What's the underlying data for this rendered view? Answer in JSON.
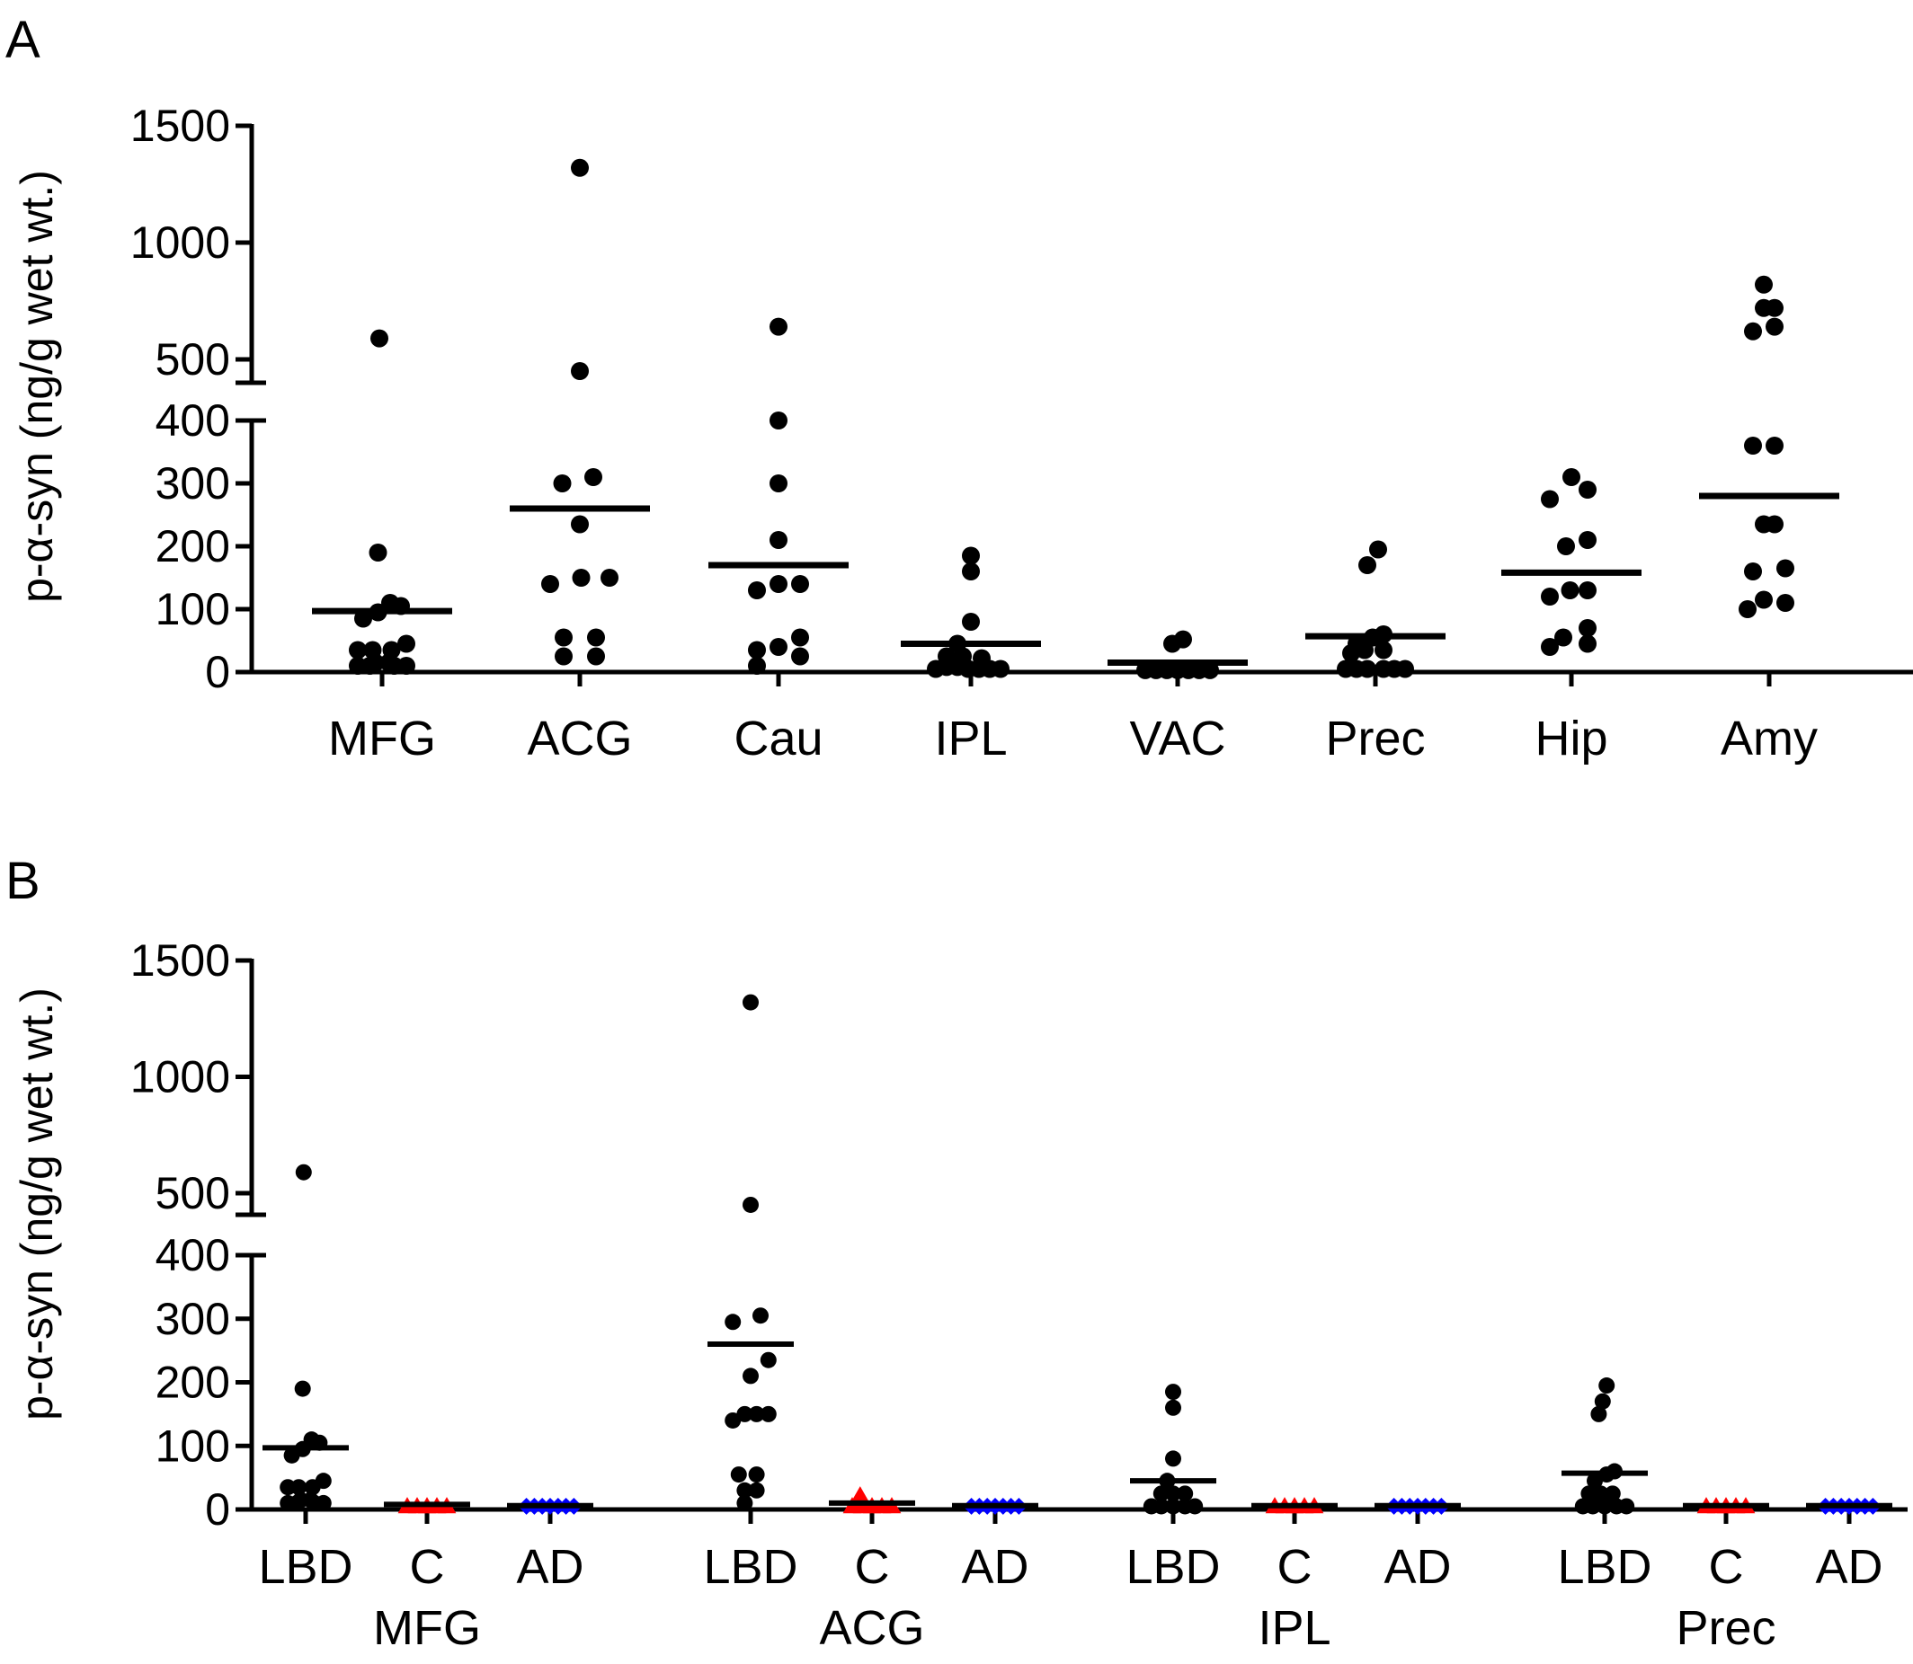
{
  "chart_data": [
    {
      "panel_label": "A",
      "type": "scatter",
      "subtype": "dot plot with mean line, broken y-axis",
      "ylabel": "p-α-syn (ng/g wet wt.)",
      "yticks_lower": [
        0,
        100,
        200,
        300,
        400
      ],
      "yticks_upper": [
        500,
        1000,
        1500
      ],
      "ylim_lower": [
        0,
        400
      ],
      "ylim_upper": [
        500,
        1500
      ],
      "categories": [
        "MFG",
        "ACG",
        "Cau",
        "IPL",
        "VAC",
        "Prec",
        "Hip",
        "Amy"
      ],
      "series": [
        {
          "category": "MFG",
          "color": "#000000",
          "marker": "circle",
          "mean": 97,
          "points": [
            [
              -0.9,
              10
            ],
            [
              -0.45,
              10
            ],
            [
              0.45,
              10
            ],
            [
              0.9,
              10
            ],
            [
              -0.25,
              15
            ],
            [
              0.25,
              15
            ],
            [
              -0.9,
              35
            ],
            [
              -0.35,
              35
            ],
            [
              0.35,
              35
            ],
            [
              0.9,
              45
            ],
            [
              -0.7,
              85
            ],
            [
              -0.15,
              95
            ],
            [
              0.3,
              110
            ],
            [
              0.7,
              105
            ],
            [
              -0.15,
              190
            ],
            [
              -0.1,
              590
            ]
          ]
        },
        {
          "category": "ACG",
          "color": "#000000",
          "marker": "circle",
          "mean": 260,
          "points": [
            [
              -0.6,
              25
            ],
            [
              0.6,
              25
            ],
            [
              -0.6,
              55
            ],
            [
              0.6,
              55
            ],
            [
              -1.1,
              140
            ],
            [
              0.05,
              150
            ],
            [
              1.1,
              150
            ],
            [
              0,
              235
            ],
            [
              -0.65,
              300
            ],
            [
              0.5,
              310
            ],
            [
              0,
              450
            ],
            [
              0,
              1320
            ]
          ]
        },
        {
          "category": "Cau",
          "color": "#000000",
          "marker": "circle",
          "mean": 170,
          "points": [
            [
              -0.8,
              10
            ],
            [
              -0.8,
              35
            ],
            [
              0.8,
              25
            ],
            [
              0,
              40
            ],
            [
              0.8,
              55
            ],
            [
              -0.8,
              130
            ],
            [
              0,
              140
            ],
            [
              0.8,
              140
            ],
            [
              0,
              210
            ],
            [
              0,
              300
            ],
            [
              0,
              400
            ],
            [
              0,
              640
            ]
          ]
        },
        {
          "category": "IPL",
          "color": "#000000",
          "marker": "circle",
          "mean": 45,
          "points": [
            [
              -1.3,
              5
            ],
            [
              -0.9,
              8
            ],
            [
              -0.5,
              8
            ],
            [
              -0.1,
              5
            ],
            [
              0.3,
              5
            ],
            [
              0.7,
              5
            ],
            [
              1.1,
              5
            ],
            [
              -0.9,
              25
            ],
            [
              -0.3,
              25
            ],
            [
              0.4,
              22
            ],
            [
              -0.5,
              45
            ],
            [
              0,
              80
            ],
            [
              0,
              160
            ],
            [
              0,
              185
            ]
          ]
        },
        {
          "category": "VAC",
          "color": "#000000",
          "marker": "circle",
          "mean": 15,
          "points": [
            [
              -1.2,
              3
            ],
            [
              -0.8,
              3
            ],
            [
              -0.4,
              3
            ],
            [
              0,
              3
            ],
            [
              0.4,
              3
            ],
            [
              0.8,
              3
            ],
            [
              1.2,
              3
            ],
            [
              -0.2,
              45
            ],
            [
              0.2,
              52
            ]
          ]
        },
        {
          "category": "Prec",
          "color": "#000000",
          "marker": "circle",
          "mean": 57,
          "points": [
            [
              -1.1,
              5
            ],
            [
              -0.7,
              5
            ],
            [
              -0.3,
              5
            ],
            [
              0.3,
              5
            ],
            [
              0.7,
              5
            ],
            [
              1.1,
              5
            ],
            [
              -0.9,
              30
            ],
            [
              -0.4,
              35
            ],
            [
              0.3,
              35
            ],
            [
              -0.7,
              45
            ],
            [
              -0.1,
              55
            ],
            [
              0.3,
              60
            ],
            [
              -0.3,
              170
            ],
            [
              0.1,
              195
            ]
          ]
        },
        {
          "category": "Hip",
          "color": "#000000",
          "marker": "circle",
          "mean": 158,
          "points": [
            [
              -0.8,
              40
            ],
            [
              0.6,
              45
            ],
            [
              -0.3,
              55
            ],
            [
              0.6,
              70
            ],
            [
              -0.8,
              120
            ],
            [
              -0.05,
              130
            ],
            [
              0.6,
              130
            ],
            [
              -0.2,
              200
            ],
            [
              0.6,
              210
            ],
            [
              -0.8,
              275
            ],
            [
              0.6,
              290
            ],
            [
              0,
              310
            ]
          ]
        },
        {
          "category": "Amy",
          "color": "#000000",
          "marker": "circle",
          "mean": 280,
          "points": [
            [
              -0.8,
              100
            ],
            [
              -0.2,
              115
            ],
            [
              0.6,
              110
            ],
            [
              -0.6,
              160
            ],
            [
              0.6,
              165
            ],
            [
              -0.2,
              235
            ],
            [
              0.2,
              235
            ],
            [
              -0.6,
              360
            ],
            [
              0.2,
              360
            ],
            [
              -0.6,
              620
            ],
            [
              0.2,
              640
            ],
            [
              -0.2,
              720
            ],
            [
              0.2,
              720
            ],
            [
              -0.2,
              820
            ]
          ]
        }
      ]
    },
    {
      "panel_label": "B",
      "type": "scatter",
      "subtype": "grouped dot plot with mean line, broken y-axis",
      "ylabel": "p-α-syn (ng/g wet wt.)",
      "yticks_lower": [
        0,
        100,
        200,
        300,
        400
      ],
      "yticks_upper": [
        500,
        1000,
        1500
      ],
      "ylim_lower": [
        0,
        400
      ],
      "ylim_upper": [
        500,
        1500
      ],
      "groups": [
        "MFG",
        "ACG",
        "IPL",
        "Prec"
      ],
      "subgroups": [
        "LBD",
        "C",
        "AD"
      ],
      "subgroup_styles": {
        "LBD": {
          "color": "#000000",
          "marker": "circle"
        },
        "C": {
          "color": "#ff0000",
          "marker": "triangle"
        },
        "AD": {
          "color": "#0000ff",
          "marker": "diamond"
        }
      },
      "series": [
        {
          "group": "MFG",
          "subgroup": "LBD",
          "mean": 97,
          "points": [
            [
              -0.9,
              10
            ],
            [
              -0.45,
              10
            ],
            [
              0.45,
              10
            ],
            [
              0.9,
              10
            ],
            [
              -0.25,
              15
            ],
            [
              0.25,
              15
            ],
            [
              -0.9,
              35
            ],
            [
              -0.35,
              35
            ],
            [
              0.35,
              35
            ],
            [
              0.9,
              45
            ],
            [
              -0.7,
              85
            ],
            [
              -0.15,
              95
            ],
            [
              0.3,
              110
            ],
            [
              0.7,
              105
            ],
            [
              -0.15,
              190
            ],
            [
              -0.1,
              590
            ]
          ]
        },
        {
          "group": "MFG",
          "subgroup": "C",
          "mean": 8,
          "points": [
            [
              -1.0,
              5
            ],
            [
              -0.5,
              5
            ],
            [
              0,
              5
            ],
            [
              0.5,
              5
            ],
            [
              1.0,
              5
            ]
          ]
        },
        {
          "group": "MFG",
          "subgroup": "AD",
          "mean": 6,
          "points": [
            [
              -1.2,
              5
            ],
            [
              -0.8,
              5
            ],
            [
              -0.4,
              5
            ],
            [
              0,
              5
            ],
            [
              0.4,
              5
            ],
            [
              0.8,
              5
            ],
            [
              1.2,
              5
            ]
          ]
        },
        {
          "group": "ACG",
          "subgroup": "LBD",
          "mean": 260,
          "points": [
            [
              -0.3,
              10
            ],
            [
              -0.3,
              30
            ],
            [
              0.3,
              30
            ],
            [
              -0.6,
              55
            ],
            [
              0.3,
              55
            ],
            [
              -0.9,
              140
            ],
            [
              -0.3,
              150
            ],
            [
              0.3,
              150
            ],
            [
              0.9,
              150
            ],
            [
              0,
              210
            ],
            [
              0.9,
              235
            ],
            [
              -0.9,
              295
            ],
            [
              0.5,
              305
            ],
            [
              0,
              450
            ],
            [
              0,
              1320
            ]
          ]
        },
        {
          "group": "ACG",
          "subgroup": "C",
          "mean": 10,
          "points": [
            [
              -1.0,
              5
            ],
            [
              -0.5,
              5
            ],
            [
              0,
              5
            ],
            [
              0.5,
              5
            ],
            [
              1.0,
              5
            ],
            [
              -0.6,
              22
            ]
          ]
        },
        {
          "group": "ACG",
          "subgroup": "AD",
          "mean": 6,
          "points": [
            [
              -1.2,
              5
            ],
            [
              -0.8,
              5
            ],
            [
              -0.4,
              5
            ],
            [
              0,
              5
            ],
            [
              0.4,
              5
            ],
            [
              0.8,
              5
            ],
            [
              1.2,
              5
            ]
          ]
        },
        {
          "group": "IPL",
          "subgroup": "LBD",
          "mean": 45,
          "points": [
            [
              -1.1,
              5
            ],
            [
              -0.6,
              5
            ],
            [
              0,
              5
            ],
            [
              0.6,
              5
            ],
            [
              1.1,
              5
            ],
            [
              -0.6,
              25
            ],
            [
              0,
              25
            ],
            [
              0.6,
              25
            ],
            [
              -0.3,
              45
            ],
            [
              0,
              80
            ],
            [
              0,
              160
            ],
            [
              0,
              185
            ]
          ]
        },
        {
          "group": "IPL",
          "subgroup": "C",
          "mean": 6,
          "points": [
            [
              -1.0,
              5
            ],
            [
              -0.5,
              5
            ],
            [
              0,
              5
            ],
            [
              0.5,
              5
            ],
            [
              1.0,
              5
            ]
          ]
        },
        {
          "group": "IPL",
          "subgroup": "AD",
          "mean": 6,
          "points": [
            [
              -1.2,
              5
            ],
            [
              -0.8,
              5
            ],
            [
              -0.4,
              5
            ],
            [
              0,
              5
            ],
            [
              0.4,
              5
            ],
            [
              0.8,
              5
            ],
            [
              1.2,
              5
            ]
          ]
        },
        {
          "group": "Prec",
          "subgroup": "LBD",
          "mean": 57,
          "points": [
            [
              -1.1,
              5
            ],
            [
              -0.6,
              5
            ],
            [
              0,
              5
            ],
            [
              0.6,
              5
            ],
            [
              1.1,
              5
            ],
            [
              -0.8,
              25
            ],
            [
              -0.2,
              25
            ],
            [
              0.4,
              25
            ],
            [
              -0.5,
              45
            ],
            [
              0.1,
              55
            ],
            [
              0.5,
              60
            ],
            [
              -0.3,
              150
            ],
            [
              -0.1,
              170
            ],
            [
              0.1,
              195
            ]
          ]
        },
        {
          "group": "Prec",
          "subgroup": "C",
          "mean": 6,
          "points": [
            [
              -1.0,
              5
            ],
            [
              -0.5,
              5
            ],
            [
              0,
              5
            ],
            [
              0.5,
              5
            ],
            [
              1.0,
              5
            ]
          ]
        },
        {
          "group": "Prec",
          "subgroup": "AD",
          "mean": 6,
          "points": [
            [
              -1.2,
              5
            ],
            [
              -0.8,
              5
            ],
            [
              -0.4,
              5
            ],
            [
              0,
              5
            ],
            [
              0.4,
              5
            ],
            [
              0.8,
              5
            ],
            [
              1.2,
              5
            ]
          ]
        }
      ]
    }
  ]
}
